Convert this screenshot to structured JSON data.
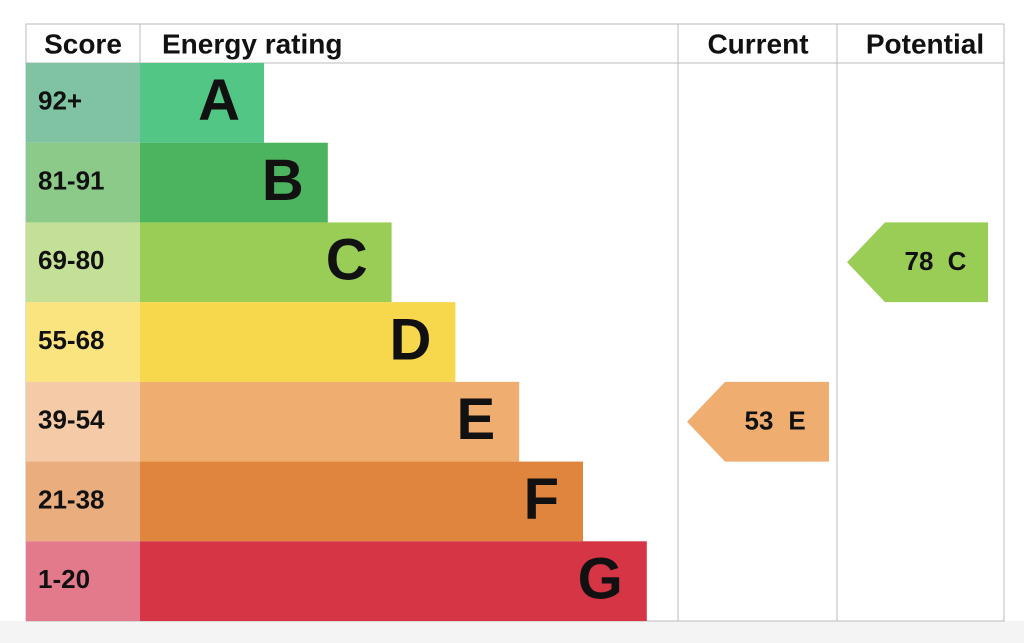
{
  "header": {
    "score": "Score",
    "rating": "Energy rating",
    "current": "Current",
    "potential": "Potential"
  },
  "bands": [
    {
      "score": "92+",
      "letter": "A",
      "color": "#52c785",
      "score_color": "#7fc3a2"
    },
    {
      "score": "81-91",
      "letter": "B",
      "color": "#4cb35e",
      "score_color": "#8bca89"
    },
    {
      "score": "69-80",
      "letter": "C",
      "color": "#9acd56",
      "score_color": "#c4e096"
    },
    {
      "score": "55-68",
      "letter": "D",
      "color": "#f7d74b",
      "score_color": "#fae47f"
    },
    {
      "score": "39-54",
      "letter": "E",
      "color": "#efae70",
      "score_color": "#f5caa6"
    },
    {
      "score": "21-38",
      "letter": "F",
      "color": "#e0853d",
      "score_color": "#eaad7e"
    },
    {
      "score": "1-20",
      "letter": "G",
      "color": "#d63545",
      "score_color": "#e27a8c"
    }
  ],
  "current": {
    "value": 53,
    "letter": "E"
  },
  "potential": {
    "value": 78,
    "letter": "C"
  }
}
